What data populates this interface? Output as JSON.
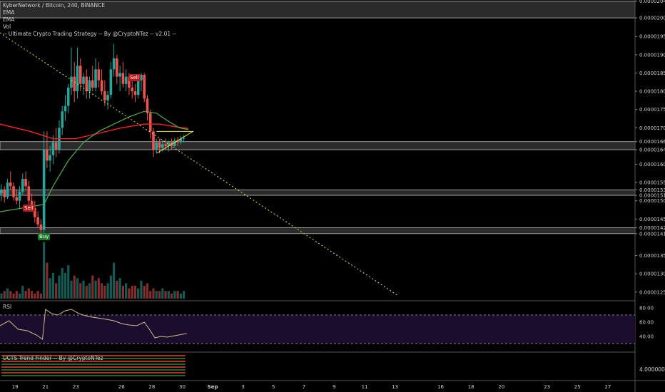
{
  "header": {
    "symbol_line": "KyberNetwork / Bitcoin, 240, BINANCE",
    "indicators": [
      "EMA",
      "EMA",
      "Vol",
      "-- Ultimate Crypto Trading Strategy -- By @CryptoNTez -- v2.01 --"
    ]
  },
  "panes": {
    "rsi_label": "RSI",
    "trend_label": "UCTS Trend Finder -- By @CryptoNTez",
    "trend_value": "4.00000000"
  },
  "signals": [
    {
      "label": "Sell",
      "color": "#b71c1c",
      "date_day": 26.3,
      "price": 1.892e-05
    },
    {
      "label": "Sell",
      "color": "#b71c1c",
      "date_day": 20.2,
      "price": 1.49e-05
    },
    {
      "label": "Buy",
      "color": "#1b7a2a",
      "date_day": 20.9,
      "price": 1.406e-05
    }
  ],
  "colors": {
    "bull": "#26a69a",
    "bear": "#ef5350",
    "ema_fast": "#4caf50",
    "ema_slow": "#ff2020",
    "trendline": "#e6e639",
    "rsi": "#d7b98a",
    "rsi_band": "#1a0d2e"
  },
  "chart_data": {
    "type": "candlestick",
    "y_ticks": [
      1.25e-05,
      1.3e-05,
      1.35e-05,
      1.41e-05,
      1.426e-05,
      1.45e-05,
      1.5e-05,
      1.515e-05,
      1.53e-05,
      1.55e-05,
      1.6e-05,
      1.64e-05,
      1.662e-05,
      1.7e-05,
      1.75e-05,
      1.8e-05,
      1.85e-05,
      1.9e-05,
      1.95e-05,
      2.001e-05,
      2.047e-05
    ],
    "y_range": [
      1.23e-05,
      2.05e-05
    ],
    "x_ticks": [
      "19",
      "21",
      "23",
      "26",
      "28",
      "30",
      "Sep",
      "3",
      "5",
      "7",
      "9",
      "11",
      "13",
      "16",
      "18",
      "20",
      "23",
      "25",
      "27"
    ],
    "x_tick_days": [
      19,
      21,
      23,
      26,
      28,
      30,
      32,
      34,
      36,
      38,
      40,
      42,
      44,
      47,
      49,
      51,
      54,
      56,
      58
    ],
    "zones": [
      [
        2.001e-05,
        2.047e-05
      ],
      [
        1.64e-05,
        1.662e-05
      ],
      [
        1.515e-05,
        1.53e-05
      ],
      [
        1.41e-05,
        1.426e-05
      ]
    ],
    "candles": [
      [
        18.1,
        1.52e-05,
        1.545e-05,
        1.5e-05,
        1.53e-05
      ],
      [
        18.3,
        1.53e-05,
        1.54e-05,
        1.495e-05,
        1.51e-05
      ],
      [
        18.5,
        1.51e-05,
        1.56e-05,
        1.505e-05,
        1.55e-05
      ],
      [
        18.7,
        1.55e-05,
        1.58e-05,
        1.53e-05,
        1.54e-05
      ],
      [
        18.9,
        1.54e-05,
        1.55e-05,
        1.5e-05,
        1.51e-05
      ],
      [
        19.1,
        1.51e-05,
        1.53e-05,
        1.49e-05,
        1.5e-05
      ],
      [
        19.3,
        1.5e-05,
        1.54e-05,
        1.48e-05,
        1.525e-05
      ],
      [
        19.5,
        1.525e-05,
        1.575e-05,
        1.515e-05,
        1.56e-05
      ],
      [
        19.7,
        1.56e-05,
        1.58e-05,
        1.53e-05,
        1.54e-05
      ],
      [
        19.9,
        1.54e-05,
        1.555e-05,
        1.49e-05,
        1.5e-05
      ],
      [
        20.1,
        1.5e-05,
        1.52e-05,
        1.47e-05,
        1.48e-05
      ],
      [
        20.3,
        1.48e-05,
        1.5e-05,
        1.44e-05,
        1.455e-05
      ],
      [
        20.5,
        1.455e-05,
        1.47e-05,
        1.425e-05,
        1.435e-05
      ],
      [
        20.7,
        1.435e-05,
        1.45e-05,
        1.41e-05,
        1.42e-05
      ],
      [
        20.9,
        1.42e-05,
        1.69e-05,
        1.4e-05,
        1.64e-05
      ],
      [
        21.1,
        1.64e-05,
        1.69e-05,
        1.59e-05,
        1.61e-05
      ],
      [
        21.3,
        1.61e-05,
        1.65e-05,
        1.58e-05,
        1.625e-05
      ],
      [
        21.5,
        1.625e-05,
        1.68e-05,
        1.6e-05,
        1.66e-05
      ],
      [
        21.7,
        1.66e-05,
        1.7e-05,
        1.62e-05,
        1.64e-05
      ],
      [
        21.9,
        1.64e-05,
        1.72e-05,
        1.63e-05,
        1.7e-05
      ],
      [
        22.1,
        1.7e-05,
        1.76e-05,
        1.68e-05,
        1.745e-05
      ],
      [
        22.3,
        1.745e-05,
        1.79e-05,
        1.72e-05,
        1.76e-05
      ],
      [
        22.5,
        1.76e-05,
        1.82e-05,
        1.74e-05,
        1.81e-05
      ],
      [
        22.7,
        1.81e-05,
        1.92e-05,
        1.79e-05,
        1.84e-05
      ],
      [
        22.9,
        1.84e-05,
        1.88e-05,
        1.77e-05,
        1.8e-05
      ],
      [
        23.1,
        1.8e-05,
        1.92e-05,
        1.78e-05,
        1.87e-05
      ],
      [
        23.3,
        1.87e-05,
        1.89e-05,
        1.8e-05,
        1.82e-05
      ],
      [
        23.5,
        1.82e-05,
        1.85e-05,
        1.79e-05,
        1.84e-05
      ],
      [
        23.7,
        1.84e-05,
        1.86e-05,
        1.78e-05,
        1.8e-05
      ],
      [
        23.9,
        1.8e-05,
        1.84e-05,
        1.78e-05,
        1.83e-05
      ],
      [
        24.1,
        1.83e-05,
        1.87e-05,
        1.8e-05,
        1.81e-05
      ],
      [
        24.3,
        1.81e-05,
        1.89e-05,
        1.8e-05,
        1.86e-05
      ],
      [
        24.5,
        1.86e-05,
        1.88e-05,
        1.81e-05,
        1.83e-05
      ],
      [
        24.7,
        1.83e-05,
        1.86e-05,
        1.79e-05,
        1.8e-05
      ],
      [
        24.9,
        1.8e-05,
        1.83e-05,
        1.76e-05,
        1.775e-05
      ],
      [
        25.1,
        1.775e-05,
        1.8e-05,
        1.75e-05,
        1.79e-05
      ],
      [
        25.3,
        1.79e-05,
        1.88e-05,
        1.78e-05,
        1.86e-05
      ],
      [
        25.5,
        1.86e-05,
        1.93e-05,
        1.84e-05,
        1.89e-05
      ],
      [
        25.7,
        1.89e-05,
        1.9e-05,
        1.82e-05,
        1.84e-05
      ],
      [
        25.9,
        1.84e-05,
        1.87e-05,
        1.8e-05,
        1.85e-05
      ],
      [
        26.1,
        1.85e-05,
        1.88e-05,
        1.81e-05,
        1.82e-05
      ],
      [
        26.3,
        1.82e-05,
        1.86e-05,
        1.8e-05,
        1.84e-05
      ],
      [
        26.5,
        1.84e-05,
        1.85e-05,
        1.79e-05,
        1.81e-05
      ],
      [
        26.7,
        1.81e-05,
        1.83e-05,
        1.78e-05,
        1.8e-05
      ],
      [
        26.9,
        1.8e-05,
        1.82e-05,
        1.77e-05,
        1.79e-05
      ],
      [
        27.1,
        1.79e-05,
        1.84e-05,
        1.78e-05,
        1.83e-05
      ],
      [
        27.3,
        1.83e-05,
        1.85e-05,
        1.8e-05,
        1.845e-05
      ],
      [
        27.5,
        1.845e-05,
        1.85e-05,
        1.77e-05,
        1.78e-05
      ],
      [
        27.7,
        1.78e-05,
        1.79e-05,
        1.72e-05,
        1.74e-05
      ],
      [
        27.9,
        1.74e-05,
        1.75e-05,
        1.67e-05,
        1.69e-05
      ],
      [
        28.1,
        1.69e-05,
        1.7e-05,
        1.62e-05,
        1.64e-05
      ],
      [
        28.3,
        1.64e-05,
        1.67e-05,
        1.63e-05,
        1.66e-05
      ],
      [
        28.5,
        1.66e-05,
        1.67e-05,
        1.63e-05,
        1.645e-05
      ],
      [
        28.7,
        1.645e-05,
        1.665e-05,
        1.635e-05,
        1.655e-05
      ],
      [
        28.9,
        1.655e-05,
        1.67e-05,
        1.64e-05,
        1.65e-05
      ],
      [
        29.1,
        1.65e-05,
        1.665e-05,
        1.635e-05,
        1.66e-05
      ],
      [
        29.3,
        1.66e-05,
        1.67e-05,
        1.64e-05,
        1.65e-05
      ],
      [
        29.5,
        1.65e-05,
        1.672e-05,
        1.645e-05,
        1.665e-05
      ],
      [
        29.7,
        1.665e-05,
        1.675e-05,
        1.65e-05,
        1.66e-05
      ],
      [
        29.9,
        1.66e-05,
        1.678e-05,
        1.655e-05,
        1.67e-05
      ],
      [
        30.1,
        1.67e-05,
        1.68e-05,
        1.66e-05,
        1.672e-05
      ]
    ],
    "ema_fast": [
      [
        18.0,
        1.47e-05
      ],
      [
        20.9,
        1.49e-05
      ],
      [
        21.5,
        1.54e-05
      ],
      [
        22.5,
        1.61e-05
      ],
      [
        23.5,
        1.66e-05
      ],
      [
        24.5,
        1.69e-05
      ],
      [
        25.5,
        1.71e-05
      ],
      [
        26.5,
        1.73e-05
      ],
      [
        27.5,
        1.745e-05
      ],
      [
        28.3,
        1.74e-05
      ],
      [
        29.0,
        1.72e-05
      ],
      [
        29.8,
        1.7e-05
      ],
      [
        30.4,
        1.695e-05
      ]
    ],
    "ema_slow": [
      [
        18.0,
        1.71e-05
      ],
      [
        20.0,
        1.69e-05
      ],
      [
        21.5,
        1.67e-05
      ],
      [
        23.0,
        1.67e-05
      ],
      [
        24.5,
        1.685e-05
      ],
      [
        26.0,
        1.7e-05
      ],
      [
        27.5,
        1.71e-05
      ],
      [
        28.5,
        1.71e-05
      ],
      [
        29.5,
        1.703e-05
      ],
      [
        30.4,
        1.698e-05
      ]
    ],
    "trendline": [
      [
        18.0,
        1.96e-05
      ],
      [
        44.2,
        1.24e-05
      ]
    ],
    "wedge": [
      [
        28.3,
        1.63e-05
      ],
      [
        30.7,
        1.69e-05
      ],
      [
        28.3,
        1.69e-05
      ]
    ],
    "volume": [
      2,
      3,
      4,
      3,
      2,
      3,
      2,
      5,
      3,
      4,
      3,
      2,
      3,
      2,
      22,
      14,
      8,
      10,
      6,
      9,
      12,
      10,
      13,
      7,
      9,
      8,
      6,
      7,
      5,
      6,
      9,
      7,
      8,
      6,
      5,
      6,
      9,
      14,
      7,
      8,
      5,
      6,
      4,
      5,
      5,
      4,
      7,
      5,
      6,
      3,
      4,
      3,
      3,
      4,
      3,
      3,
      2,
      3,
      3,
      2,
      3
    ],
    "rsi": [
      [
        18.0,
        55
      ],
      [
        18.6,
        62
      ],
      [
        19.2,
        50
      ],
      [
        19.8,
        48
      ],
      [
        20.4,
        42
      ],
      [
        20.8,
        36
      ],
      [
        21.0,
        78
      ],
      [
        21.4,
        72
      ],
      [
        21.8,
        70
      ],
      [
        22.3,
        76
      ],
      [
        22.7,
        78
      ],
      [
        23.2,
        72
      ],
      [
        23.8,
        68
      ],
      [
        24.4,
        66
      ],
      [
        25.0,
        64
      ],
      [
        25.5,
        62
      ],
      [
        26.0,
        58
      ],
      [
        26.5,
        56
      ],
      [
        27.0,
        55
      ],
      [
        27.5,
        60
      ],
      [
        27.9,
        48
      ],
      [
        28.2,
        38
      ],
      [
        28.6,
        40
      ],
      [
        29.0,
        39
      ],
      [
        29.5,
        41
      ],
      [
        30.0,
        43
      ],
      [
        30.3,
        44
      ]
    ],
    "rsi_levels": [
      30,
      70
    ],
    "rsi_ticks": [
      40.0,
      60.0,
      80.0
    ]
  }
}
